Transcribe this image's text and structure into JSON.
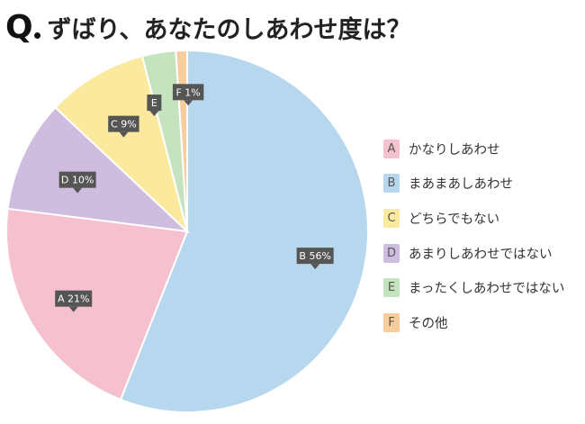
{
  "title": {
    "q": "Q",
    "text": "ずばり、あなたのしあわせ度は？"
  },
  "colors": {
    "A": "#f6c1ce",
    "B": "#b7d7ef",
    "C": "#fbea9e",
    "D": "#cfbde0",
    "E": "#c5e3be",
    "F": "#f8cd9d",
    "label_bg": "#555555",
    "label_text": "#ffffff"
  },
  "chart_data": {
    "type": "pie",
    "start": "top, clockwise",
    "slices": [
      {
        "letter": "B",
        "name": "まあまあしあわせ",
        "value": 56,
        "label": "B 56%"
      },
      {
        "letter": "A",
        "name": "かなりしあわせ",
        "value": 21,
        "label": "A 21%"
      },
      {
        "letter": "D",
        "name": "あまりしあわせではない",
        "value": 10,
        "label": "D 10%"
      },
      {
        "letter": "C",
        "name": "どちらでもない",
        "value": 9,
        "label": "C 9%"
      },
      {
        "letter": "E",
        "name": "まったくしあわせではない",
        "value": 3,
        "label": "E"
      },
      {
        "letter": "F",
        "name": "その他",
        "value": 1,
        "label": "F 1%"
      }
    ]
  },
  "legend": [
    {
      "letter": "A",
      "label": "かなりしあわせ"
    },
    {
      "letter": "B",
      "label": "まあまあしあわせ"
    },
    {
      "letter": "C",
      "label": "どちらでもない"
    },
    {
      "letter": "D",
      "label": "あまりしあわせではない"
    },
    {
      "letter": "E",
      "label": "まったくしあわせではない"
    },
    {
      "letter": "F",
      "label": "その他"
    }
  ]
}
